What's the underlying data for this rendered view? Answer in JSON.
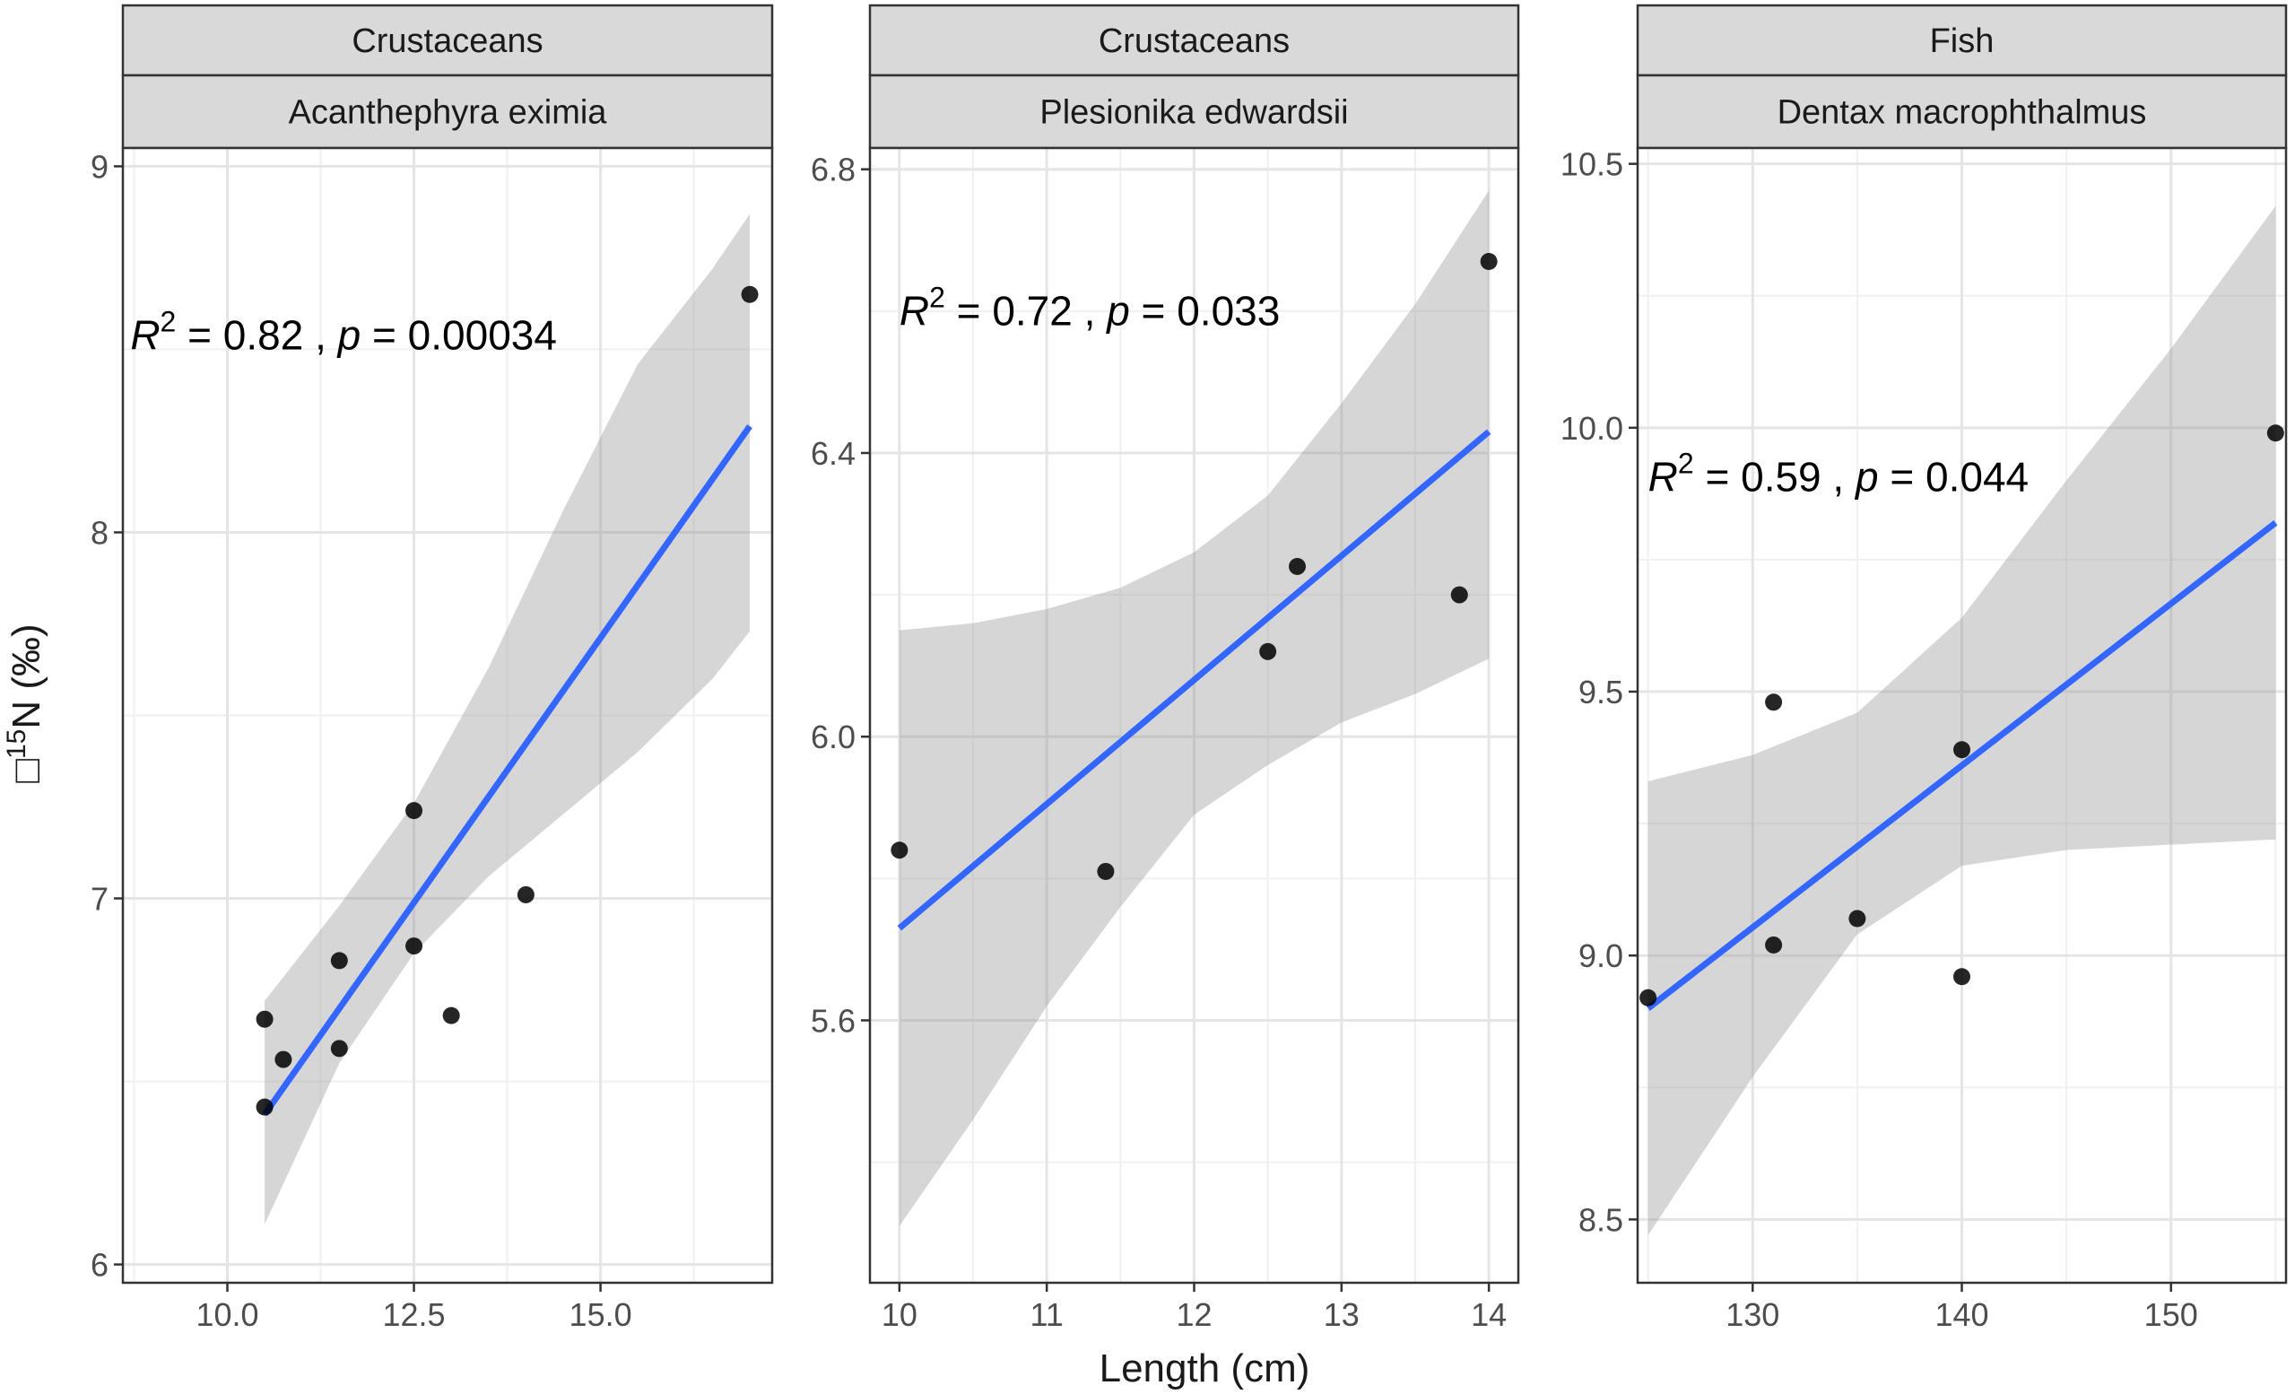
{
  "chart_data": {
    "type": "scatter",
    "xlabel": "Length (cm)",
    "ylabel": "□¹⁵N (‰)",
    "ylabel_parts": {
      "glyph": "□",
      "sup": "15",
      "rest": "N (‰)"
    },
    "panels": [
      {
        "strip_top": "Crustaceans",
        "strip_bottom": "Acanthephyra eximia",
        "xlim": [
          8.6,
          17.3
        ],
        "ylim": [
          5.95,
          9.05
        ],
        "x_ticks": [
          10,
          12.5,
          15
        ],
        "x_tick_labels": [
          "10.0",
          "12.5",
          "15.0"
        ],
        "y_ticks": [
          6,
          7,
          8,
          9
        ],
        "y_tick_labels": [
          "6",
          "7",
          "8",
          "9"
        ],
        "points": [
          [
            10.5,
            6.43
          ],
          [
            10.5,
            6.67
          ],
          [
            10.75,
            6.56
          ],
          [
            11.5,
            6.83
          ],
          [
            11.5,
            6.59
          ],
          [
            12.5,
            7.24
          ],
          [
            12.5,
            6.87
          ],
          [
            13.0,
            6.68
          ],
          [
            14.0,
            7.01
          ],
          [
            17.0,
            8.65
          ]
        ],
        "fit": {
          "x0": 10.5,
          "x1": 17.0,
          "y0": 6.41,
          "y1": 8.29
        },
        "band": [
          [
            10.5,
            6.11,
            6.72
          ],
          [
            11.5,
            6.55,
            6.98
          ],
          [
            12.5,
            6.85,
            7.26
          ],
          [
            13.5,
            7.06,
            7.63
          ],
          [
            14.5,
            7.23,
            8.06
          ],
          [
            15.5,
            7.4,
            8.46
          ],
          [
            16.5,
            7.6,
            8.72
          ],
          [
            17.0,
            7.73,
            8.87
          ]
        ],
        "annotation": {
          "r2": "0.82",
          "p": "0.00034",
          "x": 8.7,
          "y": 8.5
        }
      },
      {
        "strip_top": "Crustaceans",
        "strip_bottom": "Plesionika edwardsii",
        "xlim": [
          9.8,
          14.2
        ],
        "ylim": [
          5.23,
          6.83
        ],
        "x_ticks": [
          10,
          11,
          12,
          13,
          14
        ],
        "x_tick_labels": [
          "10",
          "11",
          "12",
          "13",
          "14"
        ],
        "y_ticks": [
          5.6,
          6.0,
          6.4,
          6.8
        ],
        "y_tick_labels": [
          "5.6",
          "6.0",
          "6.4",
          "6.8"
        ],
        "points": [
          [
            10.0,
            5.84
          ],
          [
            11.4,
            5.81
          ],
          [
            12.5,
            6.12
          ],
          [
            12.7,
            6.24
          ],
          [
            13.8,
            6.2
          ],
          [
            14.0,
            6.67
          ]
        ],
        "fit": {
          "x0": 10.0,
          "x1": 14.0,
          "y0": 5.73,
          "y1": 6.43
        },
        "band": [
          [
            10.0,
            5.31,
            6.15
          ],
          [
            10.5,
            5.46,
            6.16
          ],
          [
            11.0,
            5.62,
            6.18
          ],
          [
            11.5,
            5.76,
            6.21
          ],
          [
            12.0,
            5.89,
            6.26
          ],
          [
            12.5,
            5.96,
            6.34
          ],
          [
            13.0,
            6.02,
            6.47
          ],
          [
            13.5,
            6.06,
            6.61
          ],
          [
            14.0,
            6.11,
            6.77
          ]
        ],
        "annotation": {
          "r2": "0.72",
          "p": "0.033",
          "x": 10.0,
          "y": 6.58
        }
      },
      {
        "strip_top": "Fish",
        "strip_bottom": "Dentax macrophthalmus",
        "xlim": [
          124.5,
          155.5
        ],
        "ylim": [
          8.38,
          10.53
        ],
        "x_ticks": [
          130,
          140,
          150
        ],
        "x_tick_labels": [
          "130",
          "140",
          "150"
        ],
        "y_ticks": [
          8.5,
          9.0,
          9.5,
          10.0,
          10.5
        ],
        "y_tick_labels": [
          "8.5",
          "9.0",
          "9.5",
          "10.0",
          "10.5"
        ],
        "points": [
          [
            125,
            8.92
          ],
          [
            131,
            9.48
          ],
          [
            131,
            9.02
          ],
          [
            135,
            9.07
          ],
          [
            140,
            9.39
          ],
          [
            140,
            8.96
          ],
          [
            155,
            9.99
          ]
        ],
        "fit": {
          "x0": 125,
          "x1": 155,
          "y0": 8.9,
          "y1": 9.82
        },
        "band": [
          [
            125,
            8.47,
            9.33
          ],
          [
            130,
            8.77,
            9.38
          ],
          [
            135,
            9.04,
            9.46
          ],
          [
            140,
            9.17,
            9.64
          ],
          [
            145,
            9.2,
            9.9
          ],
          [
            150,
            9.21,
            10.15
          ],
          [
            155,
            9.22,
            10.42
          ]
        ],
        "annotation": {
          "r2": "0.59",
          "p": "0.044",
          "x": 125,
          "y": 9.88
        }
      }
    ]
  }
}
